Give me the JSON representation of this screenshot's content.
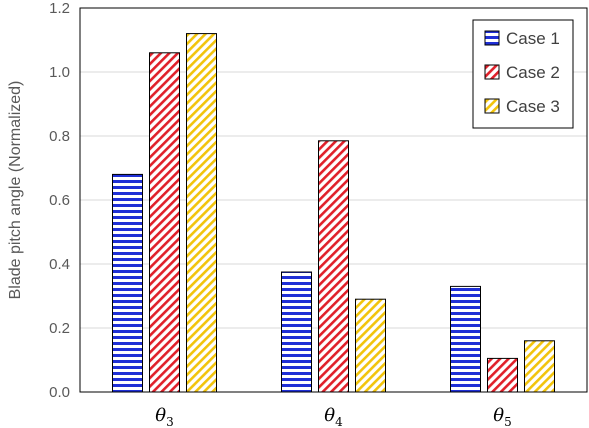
{
  "chart_data": {
    "type": "bar",
    "categories": [
      {
        "symbol": "θ",
        "sub": "3"
      },
      {
        "symbol": "θ",
        "sub": "4"
      },
      {
        "symbol": "θ",
        "sub": "5"
      }
    ],
    "series": [
      {
        "name": "Case 1",
        "values": [
          0.68,
          0.375,
          0.33
        ],
        "color": "#1f2fd6",
        "pattern": "horizontal"
      },
      {
        "name": "Case 2",
        "values": [
          1.06,
          0.785,
          0.105
        ],
        "color": "#e0202a",
        "pattern": "diagonal"
      },
      {
        "name": "Case 3",
        "values": [
          1.12,
          0.29,
          0.16
        ],
        "color": "#f2c40c",
        "pattern": "diagonal"
      }
    ],
    "ylabel": "Blade pitch angle (Normalized)",
    "xlabel": "",
    "ylim": [
      0,
      1.2
    ],
    "yticks": [
      "0.0",
      "0.2",
      "0.4",
      "0.6",
      "0.8",
      "1.0",
      "1.2"
    ],
    "grid": true,
    "legend_position": "top-right"
  }
}
